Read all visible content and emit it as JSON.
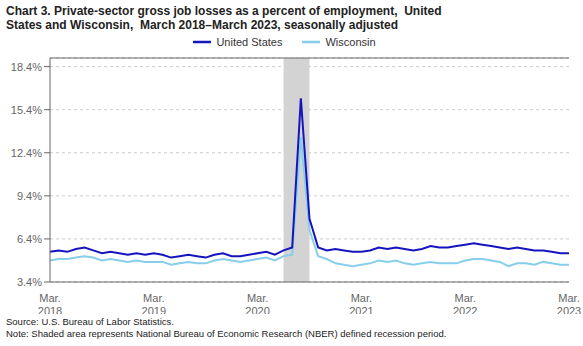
{
  "chart_data": {
    "type": "line",
    "title": "Chart 3. Private-sector gross job losses as a percent of employment,  United\nStates and Wisconsin,  March 2018–March 2023, seasonally adjusted",
    "categories": [
      "Mar.\n2018",
      null,
      null,
      null,
      null,
      null,
      null,
      null,
      null,
      null,
      null,
      null,
      "Mar.\n2019",
      null,
      null,
      null,
      null,
      null,
      null,
      null,
      null,
      null,
      null,
      null,
      "Mar.\n2020",
      null,
      null,
      null,
      null,
      null,
      null,
      null,
      null,
      null,
      null,
      null,
      "Mar.\n2021",
      null,
      null,
      null,
      null,
      null,
      null,
      null,
      null,
      null,
      null,
      null,
      "Mar.\n2022",
      null,
      null,
      null,
      null,
      null,
      null,
      null,
      null,
      null,
      null,
      null,
      "Mar.\n2023"
    ],
    "series": [
      {
        "name": "United States",
        "color": "#1515bf",
        "values": [
          5.5,
          5.6,
          5.5,
          5.7,
          5.8,
          5.6,
          5.4,
          5.5,
          5.4,
          5.3,
          5.4,
          5.3,
          5.4,
          5.3,
          5.1,
          5.2,
          5.3,
          5.2,
          5.1,
          5.3,
          5.4,
          5.2,
          5.2,
          5.3,
          5.4,
          5.5,
          5.3,
          5.6,
          5.8,
          16.2,
          7.8,
          5.8,
          5.6,
          5.7,
          5.6,
          5.5,
          5.5,
          5.6,
          5.8,
          5.7,
          5.8,
          5.7,
          5.6,
          5.7,
          5.9,
          5.8,
          5.8,
          5.9,
          6.0,
          6.1,
          6.0,
          5.9,
          5.8,
          5.7,
          5.8,
          5.7,
          5.6,
          5.6,
          5.5,
          5.4,
          5.4
        ]
      },
      {
        "name": "Wisconsin",
        "color": "#87ceeb",
        "values": [
          4.9,
          5.0,
          5.0,
          5.1,
          5.2,
          5.1,
          4.9,
          5.0,
          4.9,
          4.8,
          4.9,
          4.8,
          4.8,
          4.8,
          4.6,
          4.7,
          4.8,
          4.7,
          4.7,
          4.9,
          5.0,
          4.9,
          4.8,
          4.9,
          5.0,
          5.1,
          4.9,
          5.2,
          5.3,
          13.5,
          7.0,
          5.2,
          5.0,
          4.7,
          4.6,
          4.5,
          4.6,
          4.7,
          4.9,
          4.8,
          4.9,
          4.7,
          4.6,
          4.7,
          4.8,
          4.7,
          4.7,
          4.7,
          4.9,
          5.0,
          5.0,
          4.9,
          4.8,
          4.5,
          4.7,
          4.7,
          4.6,
          4.8,
          4.7,
          4.6,
          4.6
        ]
      }
    ],
    "shaded_span": {
      "start": 27,
      "end": 30,
      "color": "#d3d3d3"
    },
    "ylim": [
      3.4,
      19.0
    ],
    "yticks": [
      {
        "value": 3.4,
        "label": "3.4%"
      },
      {
        "value": 6.4,
        "label": "6.4%"
      },
      {
        "value": 9.4,
        "label": "9.4%"
      },
      {
        "value": 12.4,
        "label": "12.4%"
      },
      {
        "value": 15.4,
        "label": "15.4%"
      },
      {
        "value": 18.4,
        "label": "18.4%"
      }
    ],
    "grid": true,
    "legend": "top",
    "source": "Source: U.S. Bureau of Labor Statistics.",
    "note": "Note: Shaded area represents National Bureau of Economic Research (NBER) defined recession period."
  }
}
